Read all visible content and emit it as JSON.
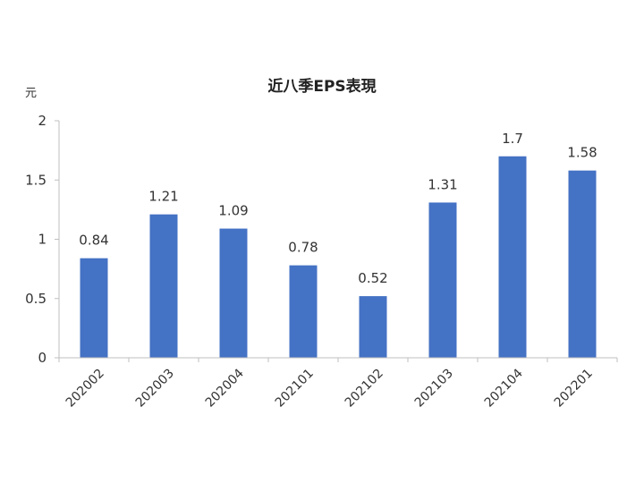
{
  "chart_data": {
    "type": "bar",
    "title": "近八季EPS表現",
    "ylabel": "元",
    "xlabel": "",
    "categories": [
      "202002",
      "202003",
      "202004",
      "202101",
      "202102",
      "202103",
      "202104",
      "202201"
    ],
    "values": [
      0.84,
      1.21,
      1.09,
      0.78,
      0.52,
      1.31,
      1.7,
      1.58
    ],
    "data_labels": [
      "0.84",
      "1.21",
      "1.09",
      "0.78",
      "0.52",
      "1.31",
      "1.7",
      "1.58"
    ],
    "yticks": [
      "0",
      "0.5",
      "1",
      "1.5",
      "2"
    ],
    "ylim": [
      0,
      2
    ],
    "bar_color": "#4472c4",
    "grid": false,
    "legend": "none"
  }
}
